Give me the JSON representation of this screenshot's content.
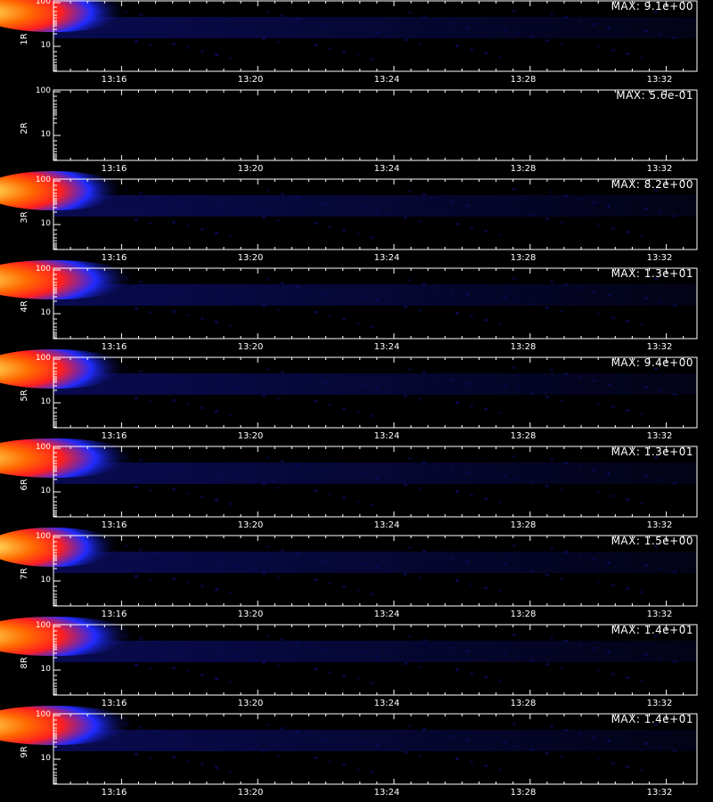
{
  "chart_data": {
    "type": "heatmap",
    "x_ticks": [
      "13:16",
      "13:20",
      "13:24",
      "13:28",
      "13:32"
    ],
    "y_ticks": [
      "100",
      "10"
    ],
    "panels": [
      {
        "label": "1R",
        "max": "MAX: 9.1e+00",
        "intensity": 0.9
      },
      {
        "label": "2R",
        "max": "MAX: 5.6e-01",
        "intensity": 0.0
      },
      {
        "label": "3R",
        "max": "MAX: 8.2e+00",
        "intensity": 0.85
      },
      {
        "label": "4R",
        "max": "MAX: 1.3e+01",
        "intensity": 1.0
      },
      {
        "label": "5R",
        "max": "MAX: 9.4e+00",
        "intensity": 0.9
      },
      {
        "label": "6R",
        "max": "MAX: 1.3e+01",
        "intensity": 1.0
      },
      {
        "label": "7R",
        "max": "MAX: 1.5e+00",
        "intensity": 0.8
      },
      {
        "label": "8R",
        "max": "MAX: 1.4e+01",
        "intensity": 1.0
      },
      {
        "label": "9R",
        "max": "MAX: 1.4e+01",
        "intensity": 1.0
      }
    ],
    "colors": {
      "hot": "#fff36b",
      "mid": "#ff6a00",
      "warm": "#ff1f1f",
      "cool": "#1f2bff",
      "dim": "#0a0c5a"
    },
    "grid": false
  }
}
